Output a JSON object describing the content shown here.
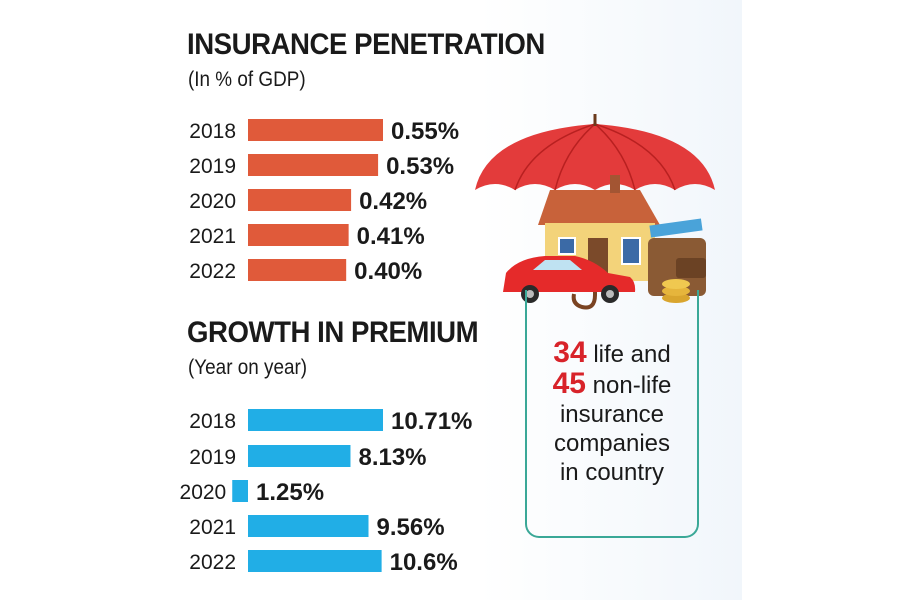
{
  "chart_data": [
    {
      "type": "bar",
      "orientation": "horizontal",
      "title": "INSURANCE PENETRATION",
      "subtitle": "(In % of GDP)",
      "categories": [
        "2018",
        "2019",
        "2020",
        "2021",
        "2022"
      ],
      "values": [
        0.55,
        0.53,
        0.42,
        0.41,
        0.4
      ],
      "labels": [
        "0.55%",
        "0.53%",
        "0.42%",
        "0.41%",
        "0.40%"
      ],
      "color": "#e05a3a"
    },
    {
      "type": "bar",
      "orientation": "horizontal",
      "title": "GROWTH IN PREMIUM",
      "subtitle": "(Year on year)",
      "categories": [
        "2018",
        "2019",
        "2020",
        "2021",
        "2022"
      ],
      "values": [
        10.71,
        8.13,
        1.25,
        9.56,
        10.6
      ],
      "labels": [
        "10.71%",
        "8.13%",
        "1.25%",
        "9.56%",
        "10.6%"
      ],
      "color": "#21aee6"
    }
  ],
  "callout": {
    "life_count": "34",
    "life_text": "life and",
    "nonlife_count": "45",
    "nonlife_text": "non-life",
    "line3": "insurance",
    "line4": "companies",
    "line5": "in country"
  },
  "colors": {
    "umbrella": "#e33b3b",
    "house_wall": "#f3d37a",
    "roof": "#c8623a",
    "car": "#e52a2a",
    "wallet": "#8a5a34",
    "coin": "#e6b53c",
    "callout_border": "#3aa897"
  }
}
